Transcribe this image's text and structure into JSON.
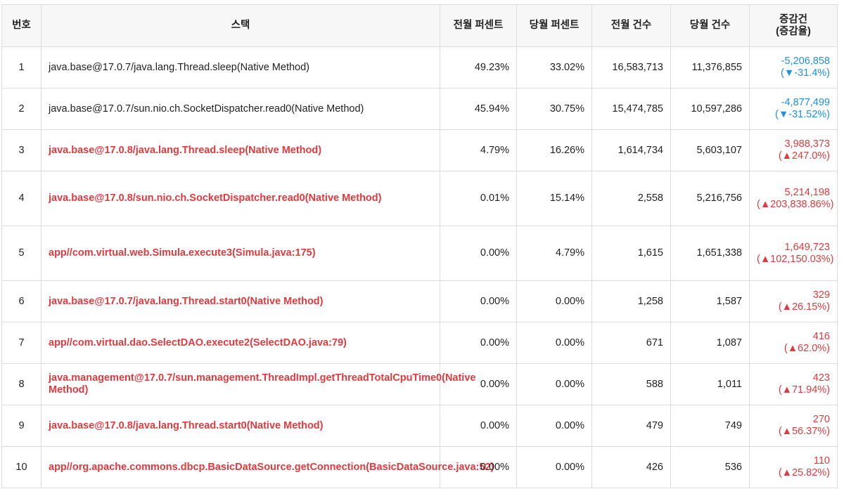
{
  "colors": {
    "increase": "#e03a3e",
    "decrease": "#1e90e6",
    "header_bg": "#f7f7f7",
    "border": "#dcdcdc"
  },
  "table": {
    "headers": {
      "no": "번호",
      "stack": "스택",
      "prev_pct": "전월 퍼센트",
      "curr_pct": "당월 퍼센트",
      "prev_count": "전월 건수",
      "curr_count": "당월 건수",
      "delta_line1": "증감건",
      "delta_line2": "(증감율)"
    },
    "rows": [
      {
        "no": "1",
        "stack": "java.base@17.0.7/java.lang.Thread.sleep(Native Method)",
        "highlight": false,
        "prev_pct": "49.23%",
        "curr_pct": "33.02%",
        "prev_count": "16,583,713",
        "curr_count": "11,376,855",
        "delta": "-5,206,858",
        "delta_rate": "(▼-31.4%)",
        "direction": "down"
      },
      {
        "no": "2",
        "stack": "java.base@17.0.7/sun.nio.ch.SocketDispatcher.read0(Native Method)",
        "highlight": false,
        "prev_pct": "45.94%",
        "curr_pct": "30.75%",
        "prev_count": "15,474,785",
        "curr_count": "10,597,286",
        "delta": "-4,877,499",
        "delta_rate": "(▼-31.52%)",
        "direction": "down"
      },
      {
        "no": "3",
        "stack": "java.base@17.0.8/java.lang.Thread.sleep(Native Method)",
        "highlight": true,
        "prev_pct": "4.79%",
        "curr_pct": "16.26%",
        "prev_count": "1,614,734",
        "curr_count": "5,603,107",
        "delta": "3,988,373",
        "delta_rate": "(▲247.0%)",
        "direction": "up"
      },
      {
        "no": "4",
        "stack": "java.base@17.0.8/sun.nio.ch.SocketDispatcher.read0(Native Method)",
        "highlight": true,
        "prev_pct": "0.01%",
        "curr_pct": "15.14%",
        "prev_count": "2,558",
        "curr_count": "5,216,756",
        "delta": "5,214,198",
        "delta_rate": "(▲203,838.86%)",
        "direction": "up"
      },
      {
        "no": "5",
        "stack": "app//com.virtual.web.Simula.execute3(Simula.java:175)",
        "highlight": true,
        "prev_pct": "0.00%",
        "curr_pct": "4.79%",
        "prev_count": "1,615",
        "curr_count": "1,651,338",
        "delta": "1,649,723",
        "delta_rate": "(▲102,150.03%)",
        "direction": "up"
      },
      {
        "no": "6",
        "stack": "java.base@17.0.7/java.lang.Thread.start0(Native Method)",
        "highlight": true,
        "prev_pct": "0.00%",
        "curr_pct": "0.00%",
        "prev_count": "1,258",
        "curr_count": "1,587",
        "delta": "329",
        "delta_rate": "(▲26.15%)",
        "direction": "up"
      },
      {
        "no": "7",
        "stack": "app//com.virtual.dao.SelectDAO.execute2(SelectDAO.java:79)",
        "highlight": true,
        "prev_pct": "0.00%",
        "curr_pct": "0.00%",
        "prev_count": "671",
        "curr_count": "1,087",
        "delta": "416",
        "delta_rate": "(▲62.0%)",
        "direction": "up"
      },
      {
        "no": "8",
        "stack": "java.management@17.0.7/sun.management.ThreadImpl.getThreadTotalCpuTime0(Native Method)",
        "highlight": true,
        "prev_pct": "0.00%",
        "curr_pct": "0.00%",
        "prev_count": "588",
        "curr_count": "1,011",
        "delta": "423",
        "delta_rate": "(▲71.94%)",
        "direction": "up"
      },
      {
        "no": "9",
        "stack": "java.base@17.0.8/java.lang.Thread.start0(Native Method)",
        "highlight": true,
        "prev_pct": "0.00%",
        "curr_pct": "0.00%",
        "prev_count": "479",
        "curr_count": "749",
        "delta": "270",
        "delta_rate": "(▲56.37%)",
        "direction": "up"
      },
      {
        "no": "10",
        "stack": "app//org.apache.commons.dbcp.BasicDataSource.getConnection(BasicDataSource.java:52)",
        "highlight": true,
        "prev_pct": "0.00%",
        "curr_pct": "0.00%",
        "prev_count": "426",
        "curr_count": "536",
        "delta": "110",
        "delta_rate": "(▲25.82%)",
        "direction": "up"
      }
    ]
  }
}
